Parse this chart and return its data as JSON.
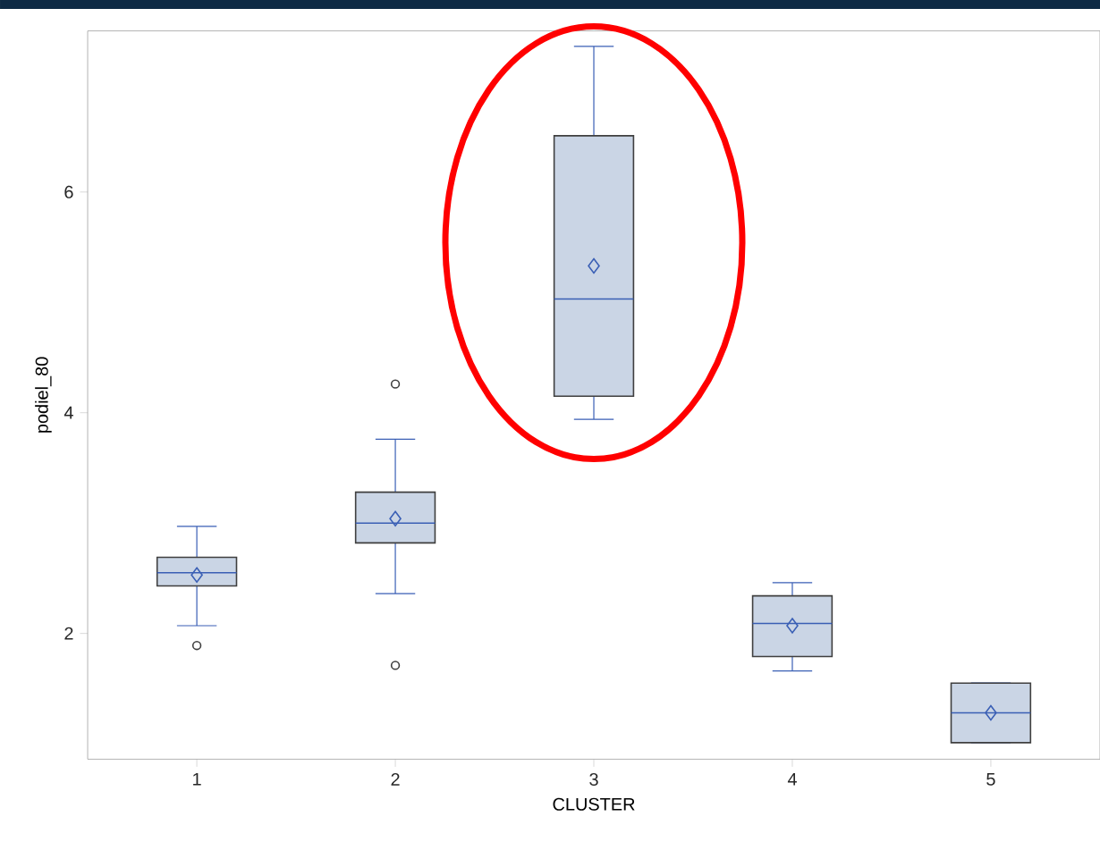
{
  "chart_data": {
    "type": "box",
    "xlabel": "CLUSTER",
    "ylabel": "podiel_80",
    "categories": [
      "1",
      "2",
      "3",
      "4",
      "5"
    ],
    "color": "#cad5e5",
    "ylim": [
      0.86,
      7.46
    ],
    "yticks": [
      2,
      4,
      6
    ],
    "boxes": [
      {
        "low": 2.07,
        "q1": 2.43,
        "median": 2.55,
        "q3": 2.69,
        "high": 2.97,
        "mean": 2.53,
        "outliers": [
          1.89
        ]
      },
      {
        "low": 2.36,
        "q1": 2.82,
        "median": 3.0,
        "q3": 3.28,
        "high": 3.76,
        "mean": 3.04,
        "outliers": [
          4.26,
          1.71
        ]
      },
      {
        "low": 3.94,
        "q1": 4.15,
        "median": 5.03,
        "q3": 6.51,
        "high": 7.32,
        "mean": 5.33
      },
      {
        "low": 1.66,
        "q1": 1.79,
        "median": 2.09,
        "q3": 2.34,
        "high": 2.46,
        "mean": 2.07
      },
      {
        "low": 1.01,
        "q1": 1.01,
        "median": 1.28,
        "q3": 1.55,
        "high": 1.55,
        "mean": 1.28
      }
    ]
  }
}
